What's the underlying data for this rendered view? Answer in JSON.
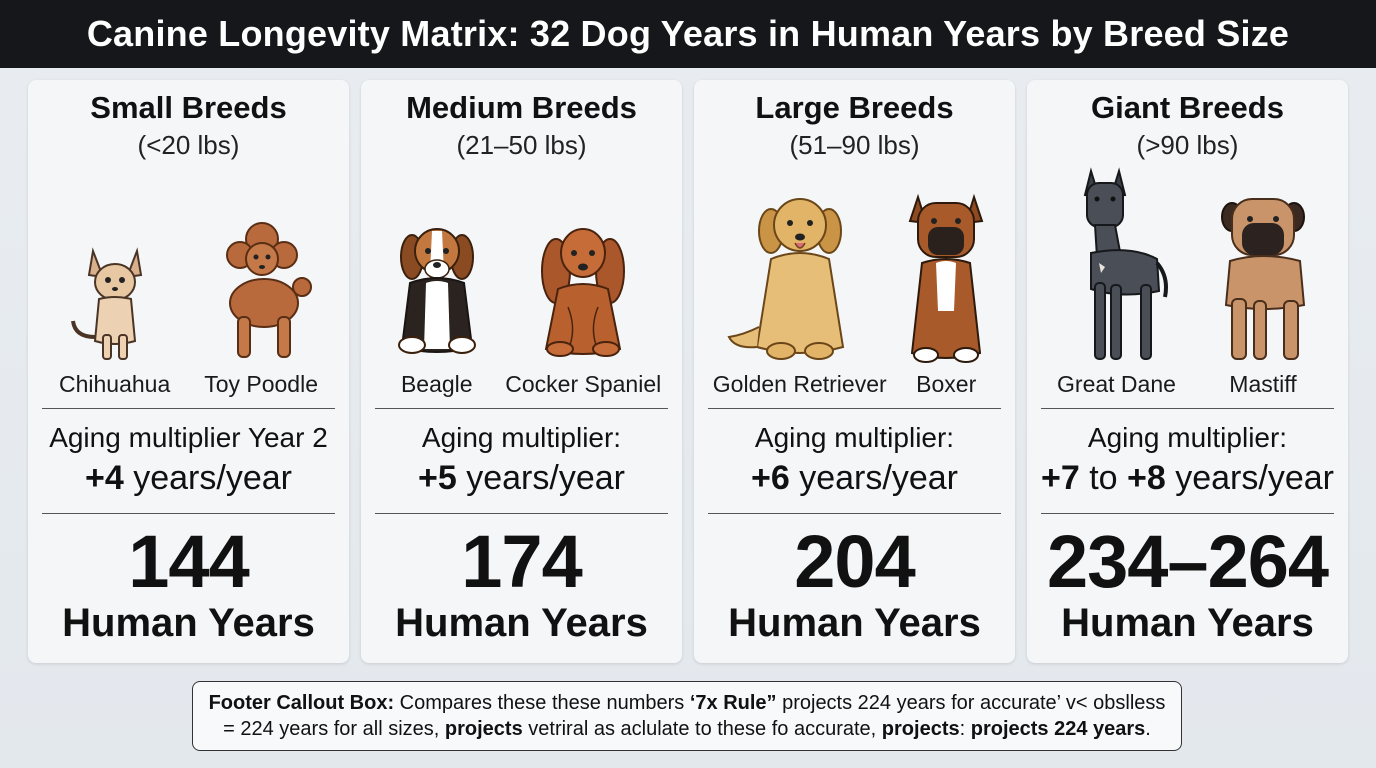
{
  "title": "Canine Longevity Matrix: 32 Dog Years in Human Years by Breed Size",
  "colors": {
    "title_bg": "#15171a",
    "card_bg": "#f4f6f8",
    "page_bg": "#e9edf1"
  },
  "categories": [
    {
      "title": "Small Breeds",
      "range": "(<20 lbs)",
      "dogs": [
        {
          "name": "Chihuahua",
          "icon": "chihuahua-illustration"
        },
        {
          "name": "Toy Poodle",
          "icon": "toy-poodle-illustration"
        }
      ],
      "multiplier_label": "Aging multiplier Year 2",
      "multiplier_value": "+4",
      "multiplier_value2": "",
      "multiplier_between": "",
      "multiplier_unit": " years/year",
      "total": "144",
      "total_unit": "Human Years"
    },
    {
      "title": "Medium Breeds",
      "range": "(21–50 lbs)",
      "dogs": [
        {
          "name": "Beagle",
          "icon": "beagle-illustration"
        },
        {
          "name": "Cocker Spaniel",
          "icon": "cocker-spaniel-illustration"
        }
      ],
      "multiplier_label": "Aging multiplier:",
      "multiplier_value": "+5",
      "multiplier_value2": "",
      "multiplier_between": "",
      "multiplier_unit": " years/year",
      "total": "174",
      "total_unit": "Human Years"
    },
    {
      "title": "Large Breeds",
      "range": "(51–90 lbs)",
      "dogs": [
        {
          "name": "Golden Retriever",
          "icon": "golden-retriever-illustration"
        },
        {
          "name": "Boxer",
          "icon": "boxer-illustration"
        }
      ],
      "multiplier_label": "Aging multiplier:",
      "multiplier_value": "+6",
      "multiplier_value2": "",
      "multiplier_between": "",
      "multiplier_unit": " years/year",
      "total": "204",
      "total_unit": "Human Years"
    },
    {
      "title": "Giant Breeds",
      "range": "(>90 lbs)",
      "dogs": [
        {
          "name": "Great Dane",
          "icon": "great-dane-illustration"
        },
        {
          "name": "Mastiff",
          "icon": "mastiff-illustration"
        }
      ],
      "multiplier_label": "Aging multiplier:",
      "multiplier_value": "+7",
      "multiplier_between": " to ",
      "multiplier_value2": "+8",
      "multiplier_unit": " years/year",
      "total": "234–264",
      "total_unit": "Human Years"
    }
  ],
  "footer": {
    "label": "Footer Callout Box:",
    "text1": " Compares these these numbers ",
    "rule": "‘7x Rule”",
    "text2": " projects 224 years for accurate’ v< obslless = 224 years for all sizes, ",
    "bold1": "projects",
    "text3": " vetriral as aclulate to these fo accurate, ",
    "bold2": "projects",
    "text4": ": ",
    "bold3": "projects 224 years",
    "text5": "."
  }
}
